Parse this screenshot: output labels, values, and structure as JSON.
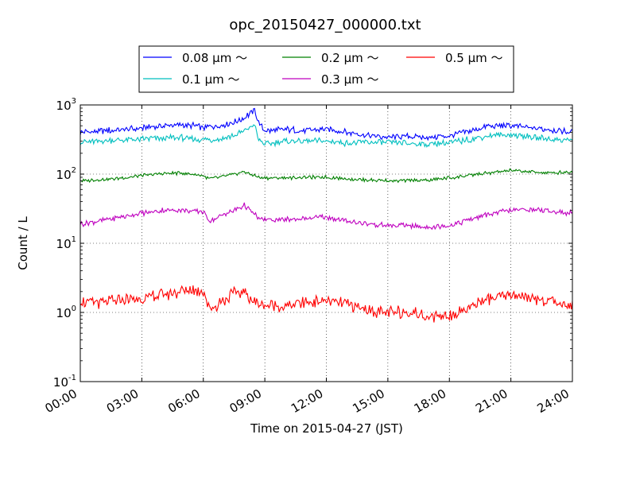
{
  "chart_data": {
    "type": "line",
    "title": "opc_20150427_000000.txt",
    "xlabel": "Time on 2015-04-27 (JST)",
    "ylabel": "Count / L",
    "x_unit": "hours",
    "xlim": [
      0,
      24
    ],
    "ylim": [
      0.1,
      1000
    ],
    "y_scale": "log",
    "grid": true,
    "x_ticks": [
      0,
      3,
      6,
      9,
      12,
      15,
      18,
      21,
      24
    ],
    "x_tick_labels": [
      "00:00",
      "03:00",
      "06:00",
      "09:00",
      "12:00",
      "15:00",
      "18:00",
      "21:00",
      "24:00"
    ],
    "y_ticks": [
      0.1,
      1,
      10,
      100,
      1000
    ],
    "y_tick_labels": [
      {
        "base": "10",
        "exp": "-1"
      },
      {
        "base": "10",
        "exp": "0"
      },
      {
        "base": "10",
        "exp": "1"
      },
      {
        "base": "10",
        "exp": "2"
      },
      {
        "base": "10",
        "exp": "3"
      }
    ],
    "legend": {
      "placement": "top",
      "columns": 3
    },
    "x": [
      0,
      1,
      2,
      3,
      4,
      5,
      5.5,
      6,
      6.3,
      7,
      7.5,
      8,
      8.5,
      8.7,
      9,
      10,
      11,
      12,
      13,
      14,
      15,
      16,
      17,
      18,
      19,
      20,
      21,
      22,
      23,
      24
    ],
    "series": [
      {
        "name": "0.08 μm ～",
        "color": "#0000ff",
        "values": [
          400,
          420,
          440,
          460,
          500,
          510,
          500,
          470,
          480,
          520,
          560,
          650,
          850,
          560,
          420,
          440,
          430,
          450,
          400,
          360,
          340,
          350,
          340,
          360,
          420,
          500,
          500,
          460,
          440,
          410
        ]
      },
      {
        "name": "0.1 μm ～",
        "color": "#00bfbf",
        "values": [
          290,
          300,
          310,
          320,
          330,
          335,
          320,
          310,
          315,
          330,
          360,
          420,
          520,
          310,
          270,
          300,
          300,
          300,
          280,
          290,
          285,
          280,
          270,
          280,
          320,
          360,
          370,
          340,
          320,
          310
        ]
      },
      {
        "name": "0.2 μm ～",
        "color": "#008000",
        "values": [
          80,
          83,
          88,
          95,
          102,
          103,
          100,
          95,
          85,
          92,
          100,
          108,
          95,
          90,
          88,
          88,
          90,
          90,
          86,
          82,
          80,
          81,
          82,
          88,
          96,
          105,
          112,
          108,
          104,
          108
        ]
      },
      {
        "name": "0.3 μm ～",
        "color": "#bf00bf",
        "values": [
          19,
          21,
          24,
          27,
          30,
          30,
          29,
          29,
          21,
          26,
          30,
          35,
          26,
          23,
          22,
          22,
          23,
          24,
          21,
          19,
          18,
          18,
          17,
          18,
          22,
          27,
          30,
          31,
          29,
          27
        ]
      },
      {
        "name": "0.5 μm ～",
        "color": "#ff0000",
        "values": [
          1.4,
          1.4,
          1.5,
          1.6,
          1.8,
          2.0,
          2.1,
          2.1,
          1.1,
          1.5,
          1.9,
          2.0,
          1.4,
          1.3,
          1.3,
          1.2,
          1.4,
          1.5,
          1.3,
          1.1,
          1.0,
          1.0,
          0.9,
          0.9,
          1.2,
          1.6,
          1.8,
          1.6,
          1.4,
          1.3
        ]
      }
    ]
  }
}
